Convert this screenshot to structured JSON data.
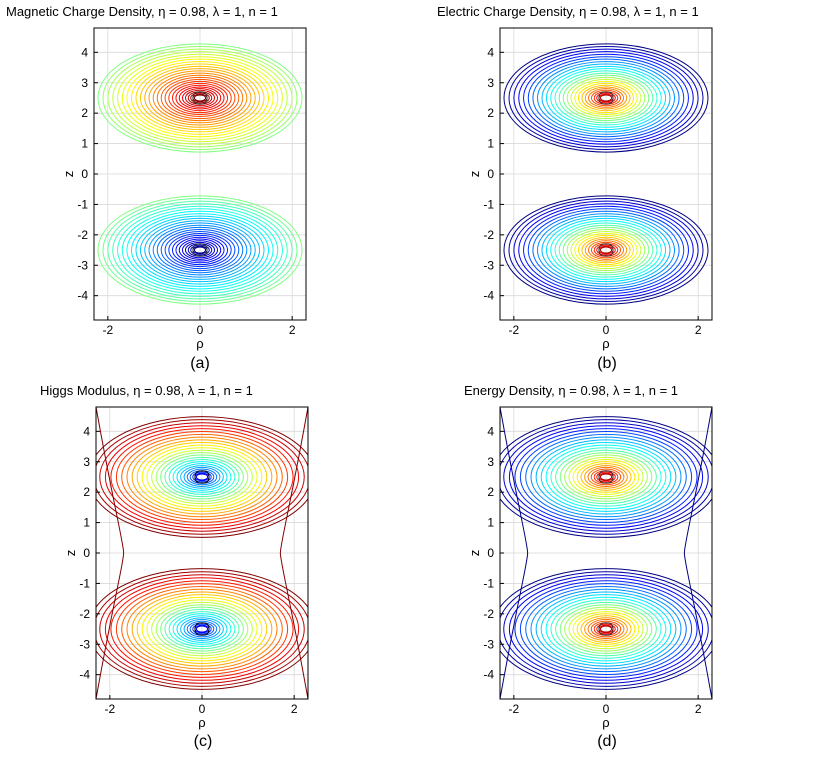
{
  "chart_data": [
    {
      "type": "contour",
      "title": "Magnetic Charge Density, η = 0.98, λ = 1, n = 1",
      "sublabel": "(a)",
      "xlabel": "ρ",
      "ylabel": "z",
      "xlim": [
        -2.3,
        2.3
      ],
      "ylim": [
        -4.8,
        4.8
      ],
      "xticks": [
        -2,
        0,
        2
      ],
      "yticks": [
        -4,
        -3,
        -2,
        -1,
        0,
        1,
        2,
        3,
        4
      ],
      "sources": [
        {
          "rho": 0,
          "z": 2.5
        },
        {
          "rho": 0,
          "z": -2.5
        }
      ],
      "colormap": "signed",
      "variant": "dipole"
    },
    {
      "type": "contour",
      "title": "Electric Charge Density, η = 0.98, λ = 1, n = 1",
      "sublabel": "(b)",
      "xlabel": "ρ",
      "ylabel": "z",
      "xlim": [
        -2.3,
        2.3
      ],
      "ylim": [
        -4.8,
        4.8
      ],
      "xticks": [
        -2,
        0,
        2
      ],
      "yticks": [
        -4,
        -3,
        -2,
        -1,
        0,
        1,
        2,
        3,
        4
      ],
      "sources": [
        {
          "rho": 0,
          "z": 2.5
        },
        {
          "rho": 0,
          "z": -2.5
        }
      ],
      "colormap": "jet-peak",
      "variant": "separate"
    },
    {
      "type": "contour",
      "title": "Higgs Modulus, η = 0.98, λ = 1, n = 1",
      "sublabel": "(c)",
      "xlabel": "ρ",
      "ylabel": "z",
      "xlim": [
        -2.3,
        2.3
      ],
      "ylim": [
        -4.8,
        4.8
      ],
      "xticks": [
        -2,
        0,
        2
      ],
      "yticks": [
        -4,
        -3,
        -2,
        -1,
        0,
        1,
        2,
        3,
        4
      ],
      "sources": [
        {
          "rho": 0,
          "z": 2.5
        },
        {
          "rho": 0,
          "z": -2.5
        }
      ],
      "colormap": "jet-dip",
      "variant": "merged"
    },
    {
      "type": "contour",
      "title": "Energy Density, η = 0.98, λ = 1, n = 1",
      "sublabel": "(d)",
      "xlabel": "ρ",
      "ylabel": "z",
      "xlim": [
        -2.3,
        2.3
      ],
      "ylim": [
        -4.8,
        4.8
      ],
      "xticks": [
        -2,
        0,
        2
      ],
      "yticks": [
        -4,
        -3,
        -2,
        -1,
        0,
        1,
        2,
        3,
        4
      ],
      "sources": [
        {
          "rho": 0,
          "z": 2.5
        },
        {
          "rho": 0,
          "z": -2.5
        }
      ],
      "colormap": "jet-peak",
      "variant": "merged"
    }
  ]
}
